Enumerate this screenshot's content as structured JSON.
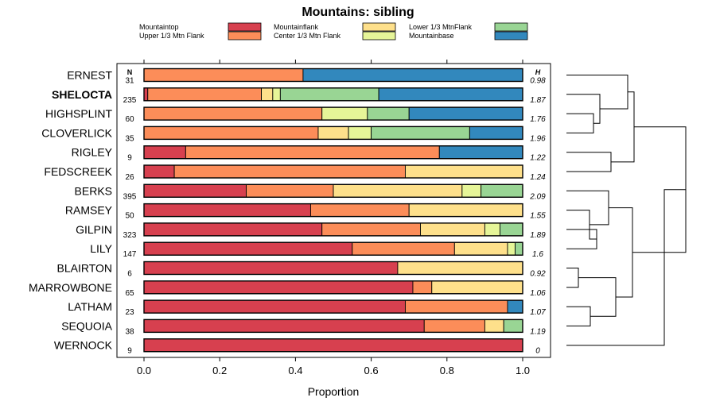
{
  "chart_data": {
    "type": "bar",
    "stacked": true,
    "orientation": "horizontal",
    "title": "Mountains: sibling",
    "xlabel": "Proportion",
    "ylabel": "",
    "xlim": [
      0,
      1
    ],
    "x_ticks": [
      "0.0",
      "0.2",
      "0.4",
      "0.6",
      "0.8",
      "1.0"
    ],
    "n_header": "N",
    "h_header": "H",
    "legend": [
      {
        "name": "Mountaintop",
        "color": "#d7404f"
      },
      {
        "name": "Upper 1/3 Mtn Flank",
        "color": "#fc8d59"
      },
      {
        "name": "Mountainflank",
        "color": "#fee08b"
      },
      {
        "name": "Center 1/3 Mtn Flank",
        "color": "#e6f598"
      },
      {
        "name": "Lower 1/3 MtnFlank",
        "color": "#99d594"
      },
      {
        "name": "Mountainbase",
        "color": "#3288bd"
      }
    ],
    "categories": [
      "ERNEST",
      "SHELOCTA",
      "HIGHSPLINT",
      "CLOVERLICK",
      "RIGLEY",
      "FEDSCREEK",
      "BERKS",
      "RAMSEY",
      "GILPIN",
      "LILY",
      "BLAIRTON",
      "MARROWBONE",
      "LATHAM",
      "SEQUOIA",
      "WERNOCK"
    ],
    "highlighted": "SHELOCTA",
    "n": [
      "31",
      "235",
      "60",
      "35",
      "9",
      "26",
      "395",
      "50",
      "323",
      "147",
      "6",
      "65",
      "23",
      "38",
      "9"
    ],
    "h": [
      "0.98",
      "1.87",
      "1.76",
      "1.96",
      "1.22",
      "1.24",
      "2.09",
      "1.55",
      "1.89",
      "1.6",
      "0.92",
      "1.06",
      "1.07",
      "1.19",
      "0"
    ],
    "series": [
      {
        "name": "Mountaintop",
        "values": [
          0.0,
          0.01,
          0.0,
          0.0,
          0.11,
          0.08,
          0.27,
          0.44,
          0.47,
          0.55,
          0.67,
          0.71,
          0.69,
          0.74,
          1.0
        ]
      },
      {
        "name": "Upper 1/3 Mtn Flank",
        "values": [
          0.42,
          0.3,
          0.47,
          0.46,
          0.67,
          0.61,
          0.23,
          0.26,
          0.26,
          0.27,
          0.0,
          0.05,
          0.27,
          0.16,
          0.0
        ]
      },
      {
        "name": "Mountainflank",
        "values": [
          0.0,
          0.03,
          0.0,
          0.08,
          0.0,
          0.31,
          0.34,
          0.3,
          0.17,
          0.14,
          0.33,
          0.24,
          0.0,
          0.05,
          0.0
        ]
      },
      {
        "name": "Center 1/3 Mtn Flank",
        "values": [
          0.0,
          0.02,
          0.12,
          0.06,
          0.0,
          0.0,
          0.05,
          0.0,
          0.04,
          0.02,
          0.0,
          0.0,
          0.0,
          0.0,
          0.0
        ]
      },
      {
        "name": "Lower 1/3 MtnFlank",
        "values": [
          0.0,
          0.26,
          0.11,
          0.26,
          0.0,
          0.0,
          0.11,
          0.0,
          0.06,
          0.02,
          0.0,
          0.0,
          0.0,
          0.05,
          0.0
        ]
      },
      {
        "name": "Mountainbase",
        "values": [
          0.58,
          0.38,
          0.3,
          0.14,
          0.22,
          0.0,
          0.0,
          0.0,
          0.0,
          0.0,
          0.0,
          0.0,
          0.04,
          0.0,
          0.0
        ]
      }
    ],
    "dendrogram": "hierarchical clustering of categories shown at right"
  }
}
